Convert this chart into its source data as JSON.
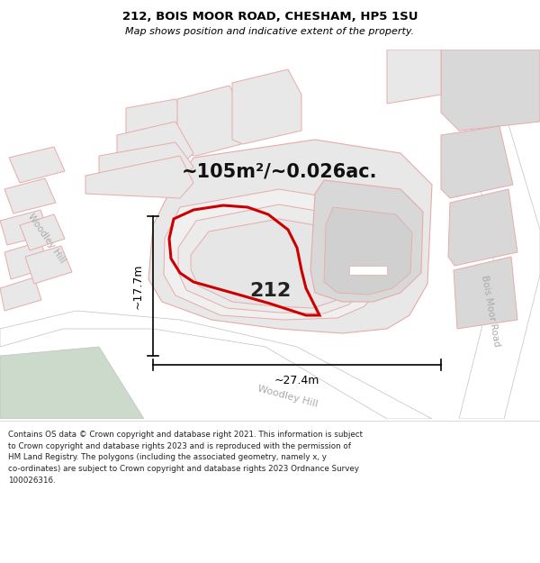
{
  "title_line1": "212, BOIS MOOR ROAD, CHESHAM, HP5 1SU",
  "title_line2": "Map shows position and indicative extent of the property.",
  "area_text": "~105m²/~0.026ac.",
  "label_212": "212",
  "dim_height": "~17.7m",
  "dim_width": "~27.4m",
  "road_label_woodley_left": "Woodley Hill",
  "road_label_woodley_bottom": "Woodley Hill",
  "road_label_bois": "Bois Moor Road",
  "footer_text": "Contains OS data © Crown copyright and database right 2021. This information is subject\nto Crown copyright and database rights 2023 and is reproduced with the permission of\nHM Land Registry. The polygons (including the associated geometry, namely x, y\nco-ordinates) are subject to Crown copyright and database rights 2023 Ordnance Survey\n100026316.",
  "map_bg": "#ffffff",
  "building_fill": "#e8e8e8",
  "building_fill2": "#d8d8d8",
  "red_color": "#cc0000",
  "pink_color": "#e8aaaa",
  "gray_line": "#c0c0c0",
  "green_fill": "#ccdacc",
  "title_bg": "#ffffff",
  "footer_bg": "#ffffff",
  "text_gray": "#aaaaaa"
}
